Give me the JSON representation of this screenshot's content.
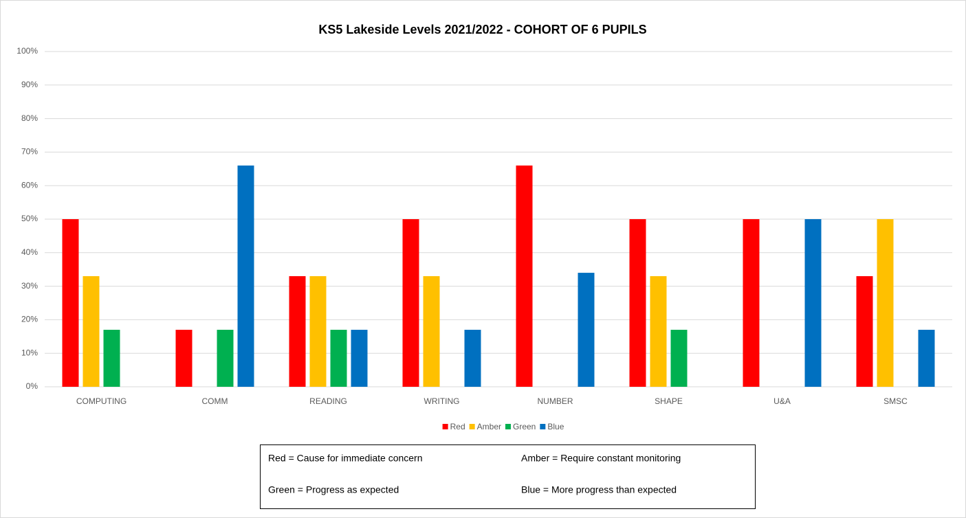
{
  "chart_data": {
    "type": "bar",
    "title": "KS5 Lakeside Levels 2021/2022 - COHORT OF 6 PUPILS",
    "categories": [
      "COMPUTING",
      "COMM",
      "READING",
      "WRITING",
      "NUMBER",
      "SHAPE",
      "U&A",
      "SMSC"
    ],
    "series": [
      {
        "name": "Red",
        "color": "#ff0000",
        "values": [
          50,
          17,
          33,
          50,
          66,
          50,
          50,
          33
        ]
      },
      {
        "name": "Amber",
        "color": "#ffc000",
        "values": [
          33,
          0,
          33,
          33,
          0,
          33,
          0,
          50
        ]
      },
      {
        "name": "Green",
        "color": "#00b050",
        "values": [
          17,
          17,
          17,
          0,
          0,
          17,
          0,
          0
        ]
      },
      {
        "name": "Blue",
        "color": "#0070c0",
        "values": [
          0,
          66,
          17,
          17,
          34,
          0,
          50,
          17
        ]
      }
    ],
    "ylim": [
      0,
      100
    ],
    "yticks": [
      {
        "value": 0,
        "label": "0%"
      },
      {
        "value": 10,
        "label": "10%"
      },
      {
        "value": 20,
        "label": "20%"
      },
      {
        "value": 30,
        "label": "30%"
      },
      {
        "value": 40,
        "label": "40%"
      },
      {
        "value": 50,
        "label": "50%"
      },
      {
        "value": 60,
        "label": "60%"
      },
      {
        "value": 70,
        "label": "70%"
      },
      {
        "value": 80,
        "label": "80%"
      },
      {
        "value": 90,
        "label": "90%"
      },
      {
        "value": 100,
        "label": "100%"
      }
    ],
    "grid": true,
    "legend": "bottom",
    "annotations": [
      "Red = Cause for immediate concern",
      "Amber = Require constant monitoring",
      "Green = Progress as expected",
      "Blue = More progress than expected"
    ]
  }
}
